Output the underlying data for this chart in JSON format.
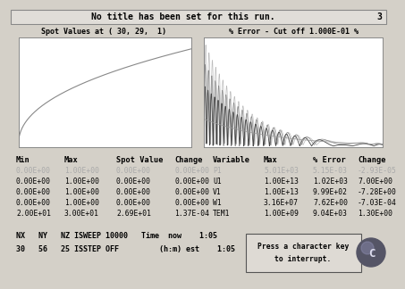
{
  "title_text": "No title has been set for this run.",
  "title_number": "3",
  "bg_color": "#d4d0c8",
  "plot_bg": "#ffffff",
  "header_bg": "#c8c4bc",
  "left_plot_title": "Spot Values at ( 30, 29,  1)",
  "right_plot_title": "% Error - Cut off 1.000E-01 %",
  "table_left_headers": [
    "Min",
    "Max",
    "Spot Value",
    "Change"
  ],
  "table_right_headers": [
    "Variable",
    "Max",
    "% Error",
    "Change"
  ],
  "table_left_rows": [
    [
      "0.00E+00",
      "1.00E+00",
      "0.00E+00",
      "0.00E+00"
    ],
    [
      "0.00E+00",
      "1.00E+00",
      "0.00E+00",
      "0.00E+00"
    ],
    [
      "0.00E+00",
      "1.00E+00",
      "0.00E+00",
      "0.00E+00"
    ],
    [
      "0.00E+00",
      "1.00E+00",
      "0.00E+00",
      "0.00E+00"
    ],
    [
      "2.00E+01",
      "3.00E+01",
      "2.69E+01",
      "1.37E-04"
    ]
  ],
  "table_right_rows": [
    [
      "P1",
      "5.01E+03",
      "5.15E-03",
      "-2.93E-05"
    ],
    [
      "U1",
      "1.00E+13",
      "1.02E+03",
      "7.00E+00"
    ],
    [
      "V1",
      "1.00E+13",
      "9.99E+02",
      "-7.28E+00"
    ],
    [
      "W1",
      "3.16E+07",
      "7.62E+00",
      "-7.03E-04"
    ],
    [
      "TEM1",
      "1.00E+09",
      "9.04E+03",
      "1.30E+00"
    ]
  ],
  "first_row_grayed": true,
  "status_line1": "NX   NY   NZ ISWEEP 10000   Time  now    1:05",
  "status_line2": "30   56   25 ISSTEP OFF         (h:m) est    1:05",
  "font_family": "monospace",
  "table_font_size": 5.8,
  "header_font_size": 6.2,
  "status_font_size": 6.0,
  "title_font_size": 7.0
}
